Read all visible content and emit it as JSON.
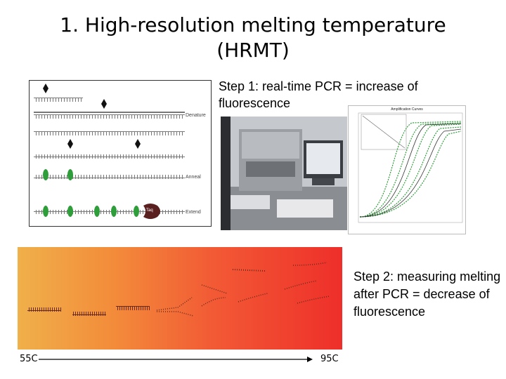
{
  "slide": {
    "title_line1": "1. High-resolution melting temperature",
    "title_line2": "(HRMT)",
    "step1_text": "Step 1: real-time PCR = increase of fluorescence",
    "step2_text": "Step 2: measuring melting after PCR = decrease of fluorescence"
  },
  "pcr_diagram": {
    "labels": [
      "Denature",
      "Anneal",
      "Extend"
    ],
    "enzyme_label": "Taq"
  },
  "amplification_chart": {
    "title": "Amplification Curves"
  },
  "melting": {
    "start_temp": "55C",
    "end_temp": "95C"
  },
  "colors": {
    "accent_green": "#2e9e3a",
    "melt_gradient_start": "#f0b04a",
    "melt_gradient_end": "#ee2f2a"
  }
}
